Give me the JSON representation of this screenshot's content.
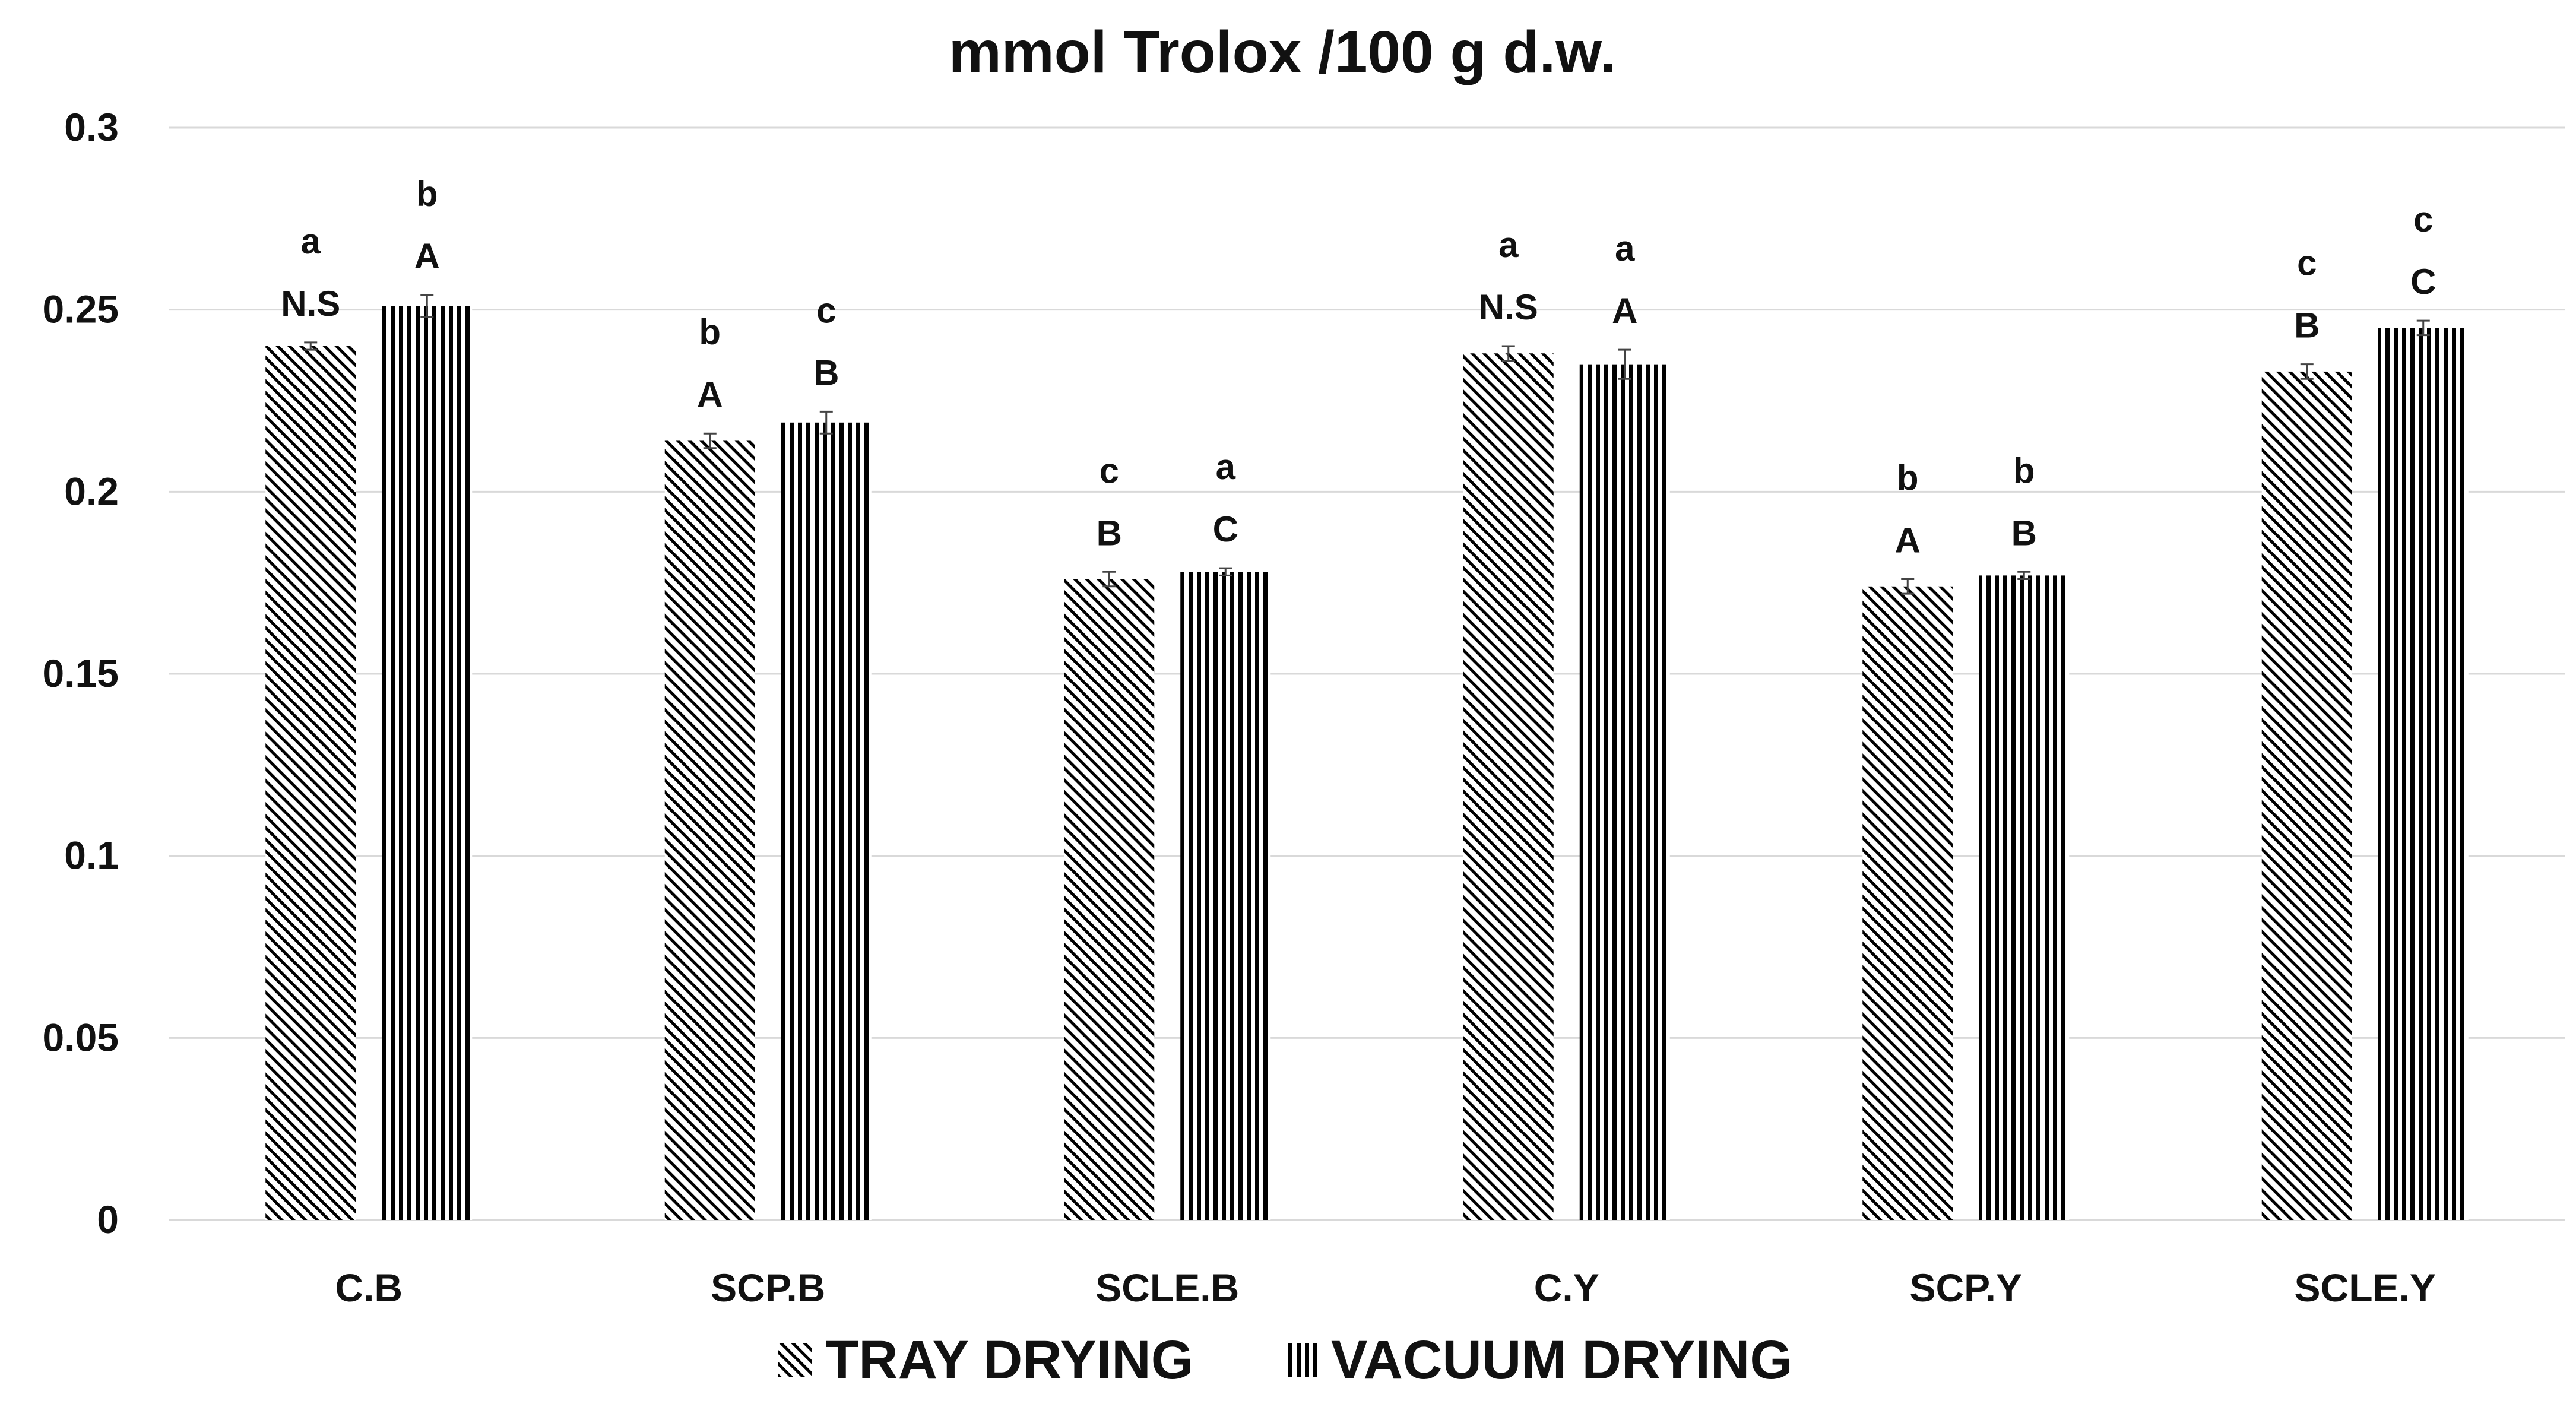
{
  "chart_data": {
    "type": "bar",
    "title": "mmol Trolox /100 g d.w.",
    "xlabel": "",
    "ylabel": "",
    "ylim": [
      0,
      0.3
    ],
    "yticks": [
      "0",
      "0.05",
      "0.1",
      "0.15",
      "0.2",
      "0.25",
      "0.3"
    ],
    "grid": true,
    "legend_position": "bottom-center",
    "categories": [
      "C.B",
      "SCP.B",
      "SCLE.B",
      "C.Y",
      "SCP.Y",
      "SCLE.Y"
    ],
    "series": [
      {
        "name": "TRAY DRYING",
        "pattern": "diagonal-hatch",
        "values": [
          0.24,
          0.214,
          0.176,
          0.238,
          0.174,
          0.233
        ],
        "errors": [
          0.001,
          0.002,
          0.002,
          0.002,
          0.002,
          0.002
        ],
        "letters_upper": [
          "N.S",
          "A",
          "B",
          "N.S",
          "A",
          "B"
        ],
        "letters_lower": [
          "a",
          "b",
          "c",
          "a",
          "b",
          "c"
        ]
      },
      {
        "name": "VACUUM DRYING",
        "pattern": "vertical-stripes",
        "values": [
          0.251,
          0.219,
          0.178,
          0.235,
          0.177,
          0.245
        ],
        "errors": [
          0.003,
          0.003,
          0.001,
          0.004,
          0.001,
          0.002
        ],
        "letters_upper": [
          "A",
          "B",
          "C",
          "A",
          "B",
          "C"
        ],
        "letters_lower": [
          "b",
          "c",
          "a",
          "a",
          "b",
          "c"
        ]
      }
    ],
    "colors": {
      "bar": "#000000",
      "grid": "#d9d9d9",
      "text": "#111111",
      "background": "#ffffff"
    }
  }
}
